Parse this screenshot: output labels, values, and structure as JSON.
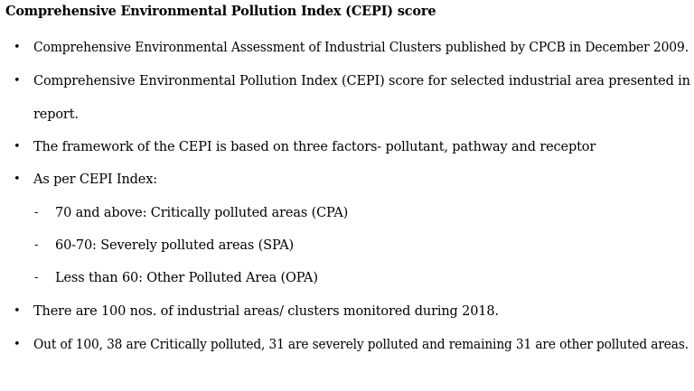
{
  "title": "Comprehensive Environmental Pollution Index (CEPI) score",
  "bullet_marker": "•",
  "dash_marker": "-",
  "items": [
    {
      "text": "Comprehensive Environmental Assessment of Industrial Clusters published by CPCB in December 2009."
    },
    {
      "text_line1": "Comprehensive Environmental Pollution Index (CEPI) score for selected industrial area presented in",
      "text_line2": "report."
    },
    {
      "text": "The framework of the CEPI is based on three factors- pollutant, pathway and receptor"
    },
    {
      "text": "As per CEPI Index:"
    },
    {
      "text": "70 and above: Critically polluted areas (CPA)"
    },
    {
      "text": "60-70: Severely polluted areas (SPA)"
    },
    {
      "text": "Less than 60: Other Polluted Area (OPA)"
    },
    {
      "text": "There are 100 nos. of industrial areas/ clusters monitored during 2018."
    },
    {
      "text": "Out of 100, 38 are Critically polluted, 31 are severely polluted and remaining 31 are other polluted areas."
    }
  ]
}
